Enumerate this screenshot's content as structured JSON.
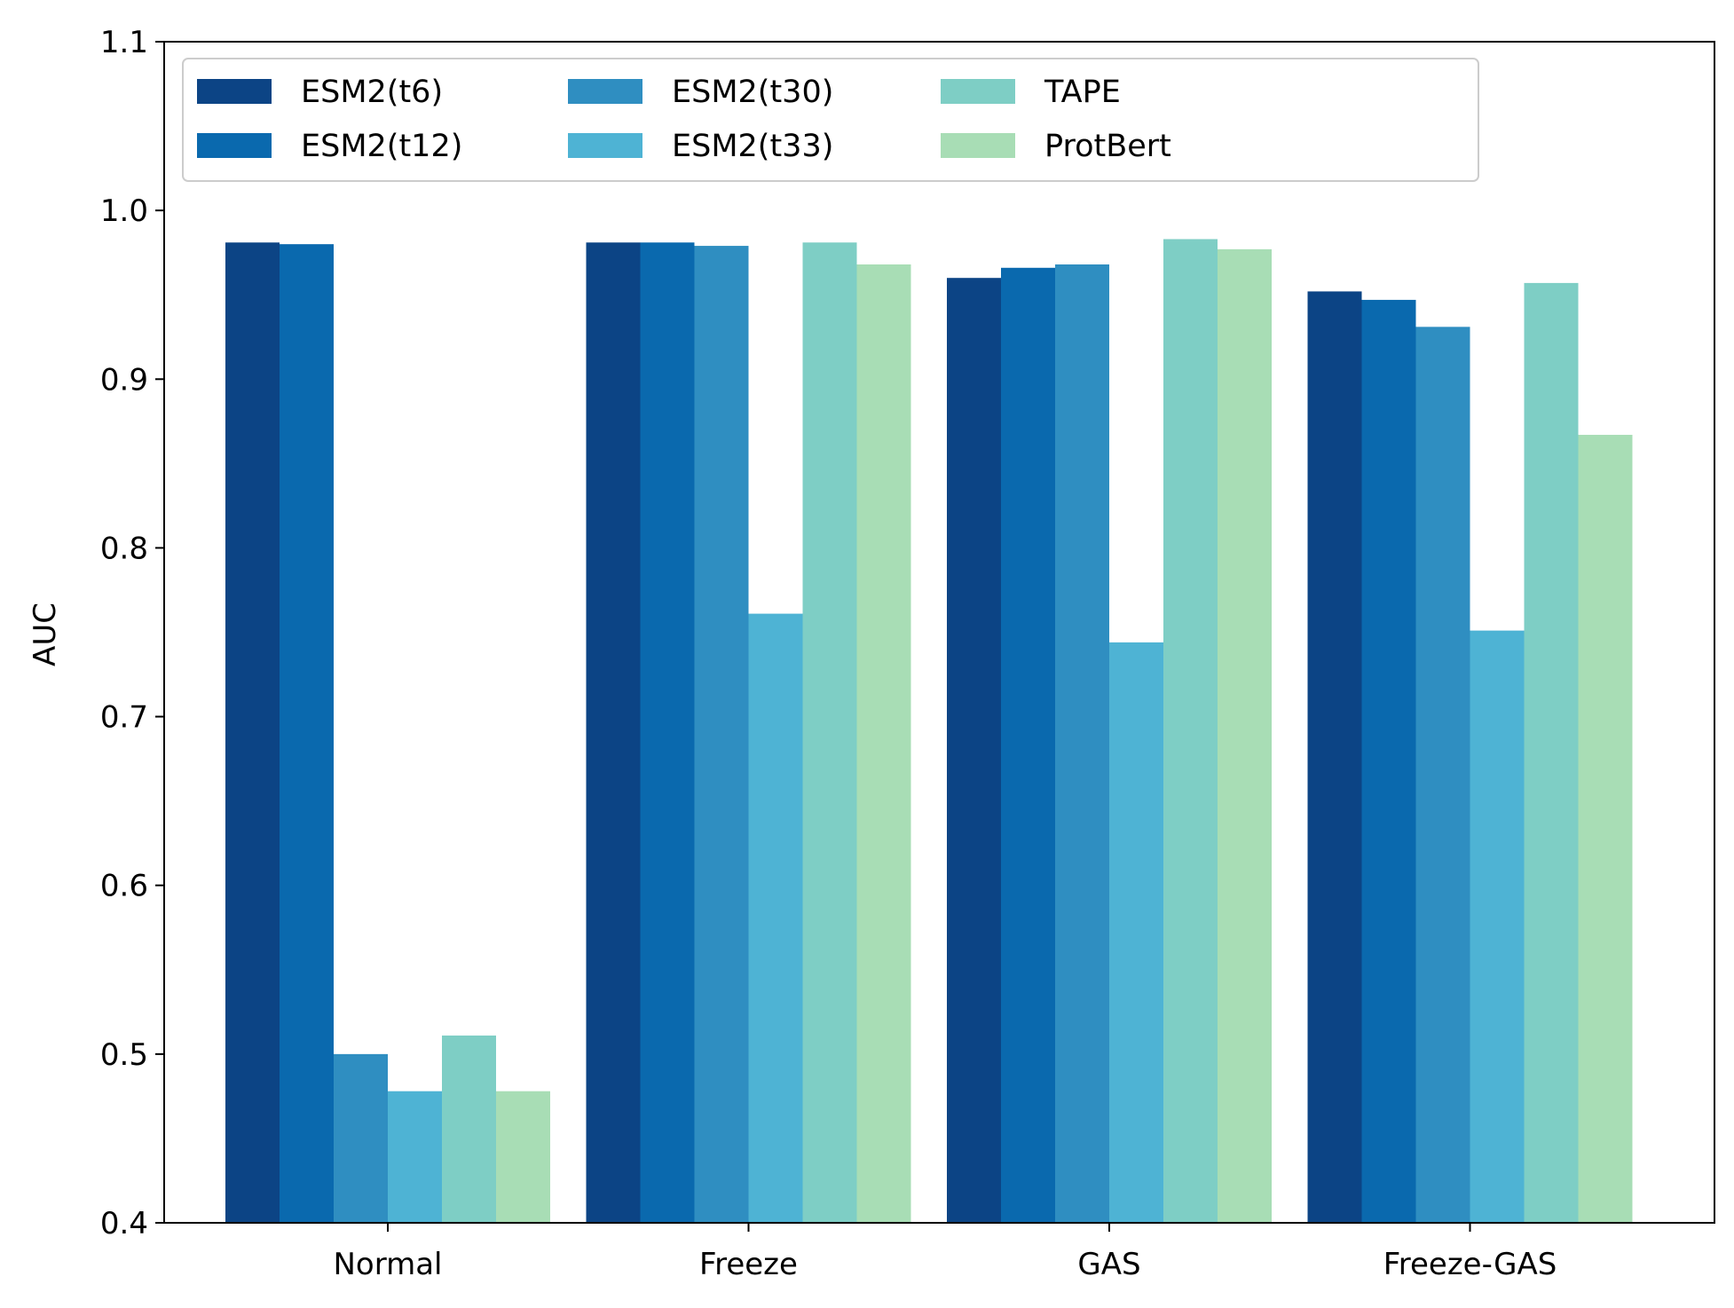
{
  "chart_data": {
    "type": "bar",
    "title": "",
    "xlabel": "",
    "ylabel": "AUC",
    "categories": [
      "Normal",
      "Freeze",
      "GAS",
      "Freeze-GAS"
    ],
    "ylim": [
      0.4,
      1.1
    ],
    "yticks": [
      "0.4",
      "0.5",
      "0.6",
      "0.7",
      "0.8",
      "0.9",
      "1.0",
      "1.1"
    ],
    "grid": false,
    "legend_position": "top-left",
    "legend_columns": 4,
    "series": [
      {
        "name": "ESM2(t6)",
        "color": "#0c4485",
        "values": [
          0.981,
          0.981,
          0.96,
          0.952
        ]
      },
      {
        "name": "ESM2(t12)",
        "color": "#0a69ae",
        "values": [
          0.98,
          0.981,
          0.966,
          0.947
        ]
      },
      {
        "name": "ESM2(t30)",
        "color": "#2f8ec1",
        "values": [
          0.5,
          0.979,
          0.968,
          0.931
        ]
      },
      {
        "name": "ESM2(t33)",
        "color": "#4eb3d4",
        "values": [
          0.478,
          0.761,
          0.744,
          0.751
        ]
      },
      {
        "name": "TAPE",
        "color": "#7ecec5",
        "values": [
          0.511,
          0.981,
          0.983,
          0.957
        ]
      },
      {
        "name": "ProtBert",
        "color": "#a8ddb5",
        "values": [
          0.478,
          0.968,
          0.977,
          0.867
        ]
      }
    ]
  }
}
